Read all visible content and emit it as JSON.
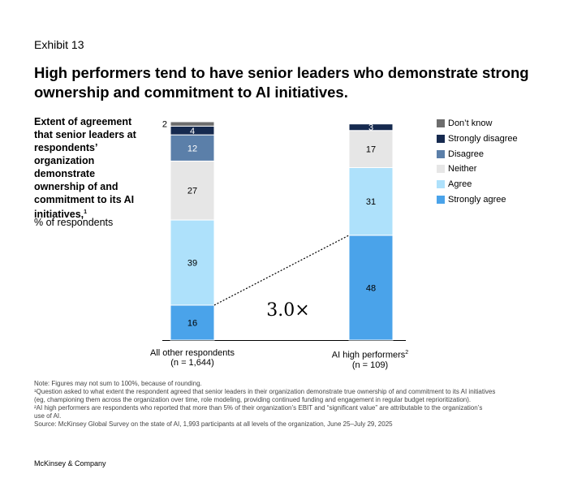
{
  "exhibit": "Exhibit 13",
  "title": "High performers tend to have senior leaders who demonstrate strong ownership and commitment to AI initiatives.",
  "subtitle": {
    "text": "Extent of agreement that senior leaders at respondents’ organization demonstrate ownership of and commitment to its AI initiatives,",
    "footnote_mark": "1",
    "unit": "% of respondents"
  },
  "chart_data": {
    "type": "bar",
    "stacked": true,
    "categories": [
      {
        "name": "All other respondents",
        "n": "(n = 1,644)",
        "footnote_mark": ""
      },
      {
        "name": "AI high performers",
        "n": "(n = 109)",
        "footnote_mark": "2"
      }
    ],
    "series": [
      {
        "name": "Strongly agree",
        "color": "#4aa3ea",
        "values": [
          16,
          48
        ]
      },
      {
        "name": "Agree",
        "color": "#aee1fb",
        "values": [
          39,
          31
        ]
      },
      {
        "name": "Neither",
        "color": "#e6e6e6",
        "values": [
          27,
          17
        ]
      },
      {
        "name": "Disagree",
        "color": "#5b7fa9",
        "values": [
          12,
          0
        ]
      },
      {
        "name": "Strongly disagree",
        "color": "#162a4f",
        "values": [
          4,
          3
        ]
      },
      {
        "name": "Don’t know",
        "color": "#6d6d6d",
        "values": [
          2,
          0
        ]
      }
    ],
    "legend_order": [
      "Don’t know",
      "Strongly disagree",
      "Disagree",
      "Neither",
      "Agree",
      "Strongly agree"
    ],
    "annotation": "3.0×",
    "ylim": [
      0,
      100
    ]
  },
  "notes": [
    "Note: Figures may not sum to 100%, because of rounding.",
    "¹Question asked to what extent the respondent agreed that senior leaders in their organization demonstrate true ownership of and commitment to its AI initiatives",
    "  (eg, championing them across the organization over time, role modeling, providing continued funding and engagement in regular budget reprioritization).",
    "²AI high performers are respondents who reported that more than 5% of their organization’s EBIT and “significant value” are attributable to the organization’s",
    "  use of AI.",
    "Source: McKinsey Global Survey on the state of AI, 1,993 participants at all levels of the organization, June 25–July 29, 2025"
  ],
  "brand": "McKinsey & Company"
}
